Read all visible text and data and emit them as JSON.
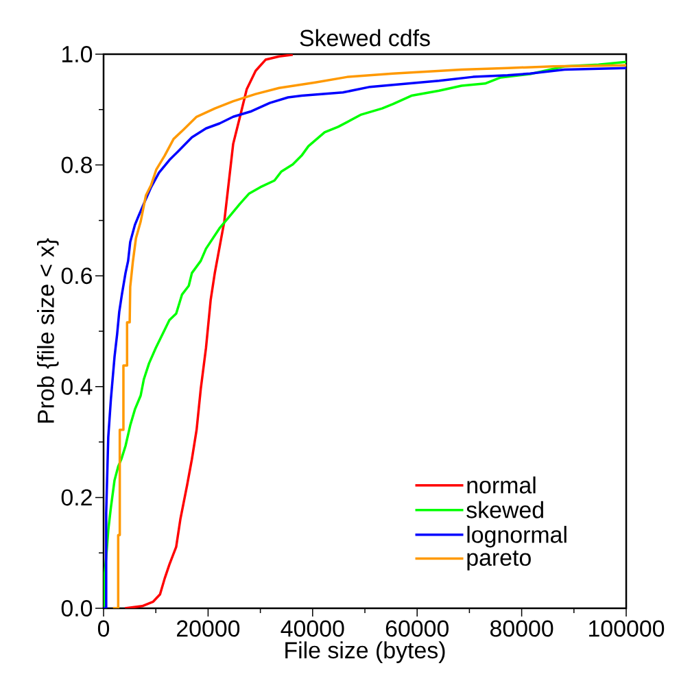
{
  "chart_data": {
    "type": "line",
    "title": "Skewed cdfs",
    "xlabel": "File size (bytes)",
    "ylabel": "Prob {file size < x}",
    "xlim": [
      0,
      100000
    ],
    "ylim": [
      0,
      1
    ],
    "xticks": [
      0,
      20000,
      40000,
      60000,
      80000,
      100000
    ],
    "yticks": [
      {
        "value": 0,
        "label": "0.0"
      },
      {
        "value": 0.2,
        "label": "0.2"
      },
      {
        "value": 0.4,
        "label": "0.4"
      },
      {
        "value": 0.6,
        "label": "0.6"
      },
      {
        "value": 0.8,
        "label": "0.8"
      },
      {
        "value": 1,
        "label": "1.0"
      }
    ],
    "legend": "bottom right",
    "series": [
      {
        "name": "normal",
        "color": "#ff0000",
        "x": [
          4100,
          7400,
          9500,
          10800,
          11700,
          12600,
          13900,
          14700,
          16000,
          16900,
          17800,
          18600,
          19600,
          20500,
          21300,
          23100,
          24800,
          26100,
          27400,
          29100,
          31000,
          33600,
          36200
        ],
        "values": [
          0,
          0.004,
          0.012,
          0.025,
          0.054,
          0.079,
          0.111,
          0.161,
          0.223,
          0.269,
          0.322,
          0.396,
          0.47,
          0.557,
          0.606,
          0.698,
          0.838,
          0.887,
          0.937,
          0.97,
          0.99,
          0.996,
          0.999
        ]
      },
      {
        "name": "skewed",
        "color": "#00ff00",
        "x": [
          100,
          100,
          500,
          900,
          1400,
          2100,
          2800,
          3400,
          4200,
          5100,
          6000,
          7100,
          7700,
          8700,
          10000,
          11300,
          12600,
          13900,
          15000,
          16300,
          16900,
          18600,
          19600,
          22200,
          23900,
          26100,
          27800,
          30000,
          32700,
          34000,
          36200,
          37900,
          39200,
          42300,
          44900,
          49300,
          53300,
          55400,
          58900,
          64200,
          68500,
          73000,
          76000,
          81600,
          88200,
          94700,
          100000
        ],
        "values": [
          0,
          0.05,
          0.092,
          0.141,
          0.182,
          0.231,
          0.256,
          0.269,
          0.293,
          0.33,
          0.359,
          0.384,
          0.413,
          0.442,
          0.47,
          0.495,
          0.52,
          0.532,
          0.566,
          0.582,
          0.605,
          0.627,
          0.649,
          0.686,
          0.705,
          0.73,
          0.748,
          0.76,
          0.772,
          0.788,
          0.801,
          0.817,
          0.834,
          0.859,
          0.869,
          0.891,
          0.902,
          0.91,
          0.925,
          0.934,
          0.943,
          0.947,
          0.958,
          0.964,
          0.978,
          0.981,
          0.986
        ]
      },
      {
        "name": "lognormal",
        "color": "#0000ff",
        "x": [
          0,
          500,
          500,
          900,
          1400,
          2100,
          2600,
          3000,
          3500,
          4200,
          4700,
          5100,
          6000,
          6700,
          7700,
          9100,
          10600,
          12600,
          14300,
          16900,
          19600,
          22200,
          24800,
          28300,
          31800,
          35300,
          37900,
          45800,
          51000,
          64200,
          70700,
          77300,
          81600,
          88200,
          100000
        ],
        "values": [
          0,
          0,
          0.172,
          0.309,
          0.377,
          0.454,
          0.495,
          0.535,
          0.566,
          0.605,
          0.627,
          0.661,
          0.692,
          0.708,
          0.73,
          0.76,
          0.786,
          0.809,
          0.825,
          0.85,
          0.866,
          0.875,
          0.887,
          0.897,
          0.912,
          0.922,
          0.925,
          0.931,
          0.941,
          0.952,
          0.959,
          0.962,
          0.965,
          0.972,
          0.975
        ]
      },
      {
        "name": "pareto",
        "color": "#ff9900",
        "x": [
          1800,
          2800,
          2800,
          3100,
          3100,
          3800,
          3800,
          4500,
          4500,
          5000,
          5100,
          5600,
          6200,
          7100,
          8100,
          9100,
          10100,
          11700,
          13400,
          15200,
          17800,
          21300,
          24800,
          29100,
          33600,
          40500,
          46700,
          55400,
          68500,
          77300,
          86100,
          100000
        ],
        "values": [
          0,
          0,
          0.132,
          0.132,
          0.322,
          0.322,
          0.438,
          0.438,
          0.516,
          0.516,
          0.58,
          0.625,
          0.668,
          0.698,
          0.745,
          0.764,
          0.792,
          0.817,
          0.847,
          0.863,
          0.887,
          0.902,
          0.915,
          0.928,
          0.939,
          0.949,
          0.959,
          0.965,
          0.972,
          0.975,
          0.978,
          0.98
        ]
      }
    ]
  }
}
